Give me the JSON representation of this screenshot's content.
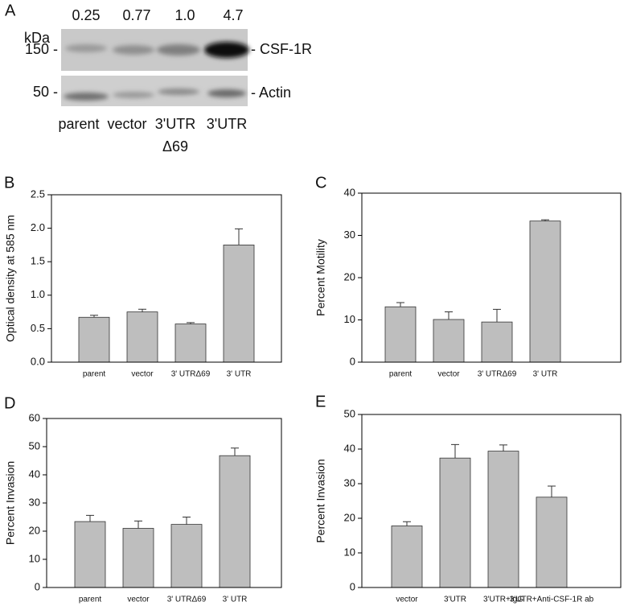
{
  "blot": {
    "panel": "A",
    "unit": "kDa",
    "quantities": [
      "0.25",
      "0.77",
      "1.0",
      "4.7"
    ],
    "markers": [
      "150 -",
      "50 -"
    ],
    "bands": [
      "- CSF-1R",
      "- Actin"
    ],
    "lanes": [
      "parent",
      "vector",
      "3'UTR\nΔ69",
      "3'UTR"
    ]
  },
  "chart_data": [
    {
      "type": "bar",
      "title": "B",
      "y_label": "Optical density at 585 nm",
      "categories": [
        "parent",
        "vector",
        "3' UTRΔ69",
        "3' UTR"
      ],
      "values": [
        0.67,
        0.75,
        0.57,
        1.75
      ],
      "errors": [
        0.03,
        0.04,
        0.02,
        0.24
      ],
      "color": "#bebebe",
      "ylim": [
        0,
        2.5
      ],
      "yticks": [
        {
          "value": 0,
          "label": "0.0"
        },
        0.5,
        {
          "value": 1,
          "label": "1.0"
        },
        1.5,
        {
          "value": 2,
          "label": "2.0"
        },
        2.5
      ]
    },
    {
      "type": "bar",
      "title": "C",
      "y_label": "Percent Motility",
      "categories": [
        "parent",
        "vector",
        "3' UTRΔ69",
        "3' UTR"
      ],
      "values": [
        13.1,
        10.1,
        9.5,
        33.4
      ],
      "errors": [
        1.0,
        1.8,
        3.0,
        0.3
      ],
      "color": "#bebebe",
      "ylim": [
        0,
        40
      ],
      "yticks": [
        0,
        10,
        20,
        30,
        40
      ]
    },
    {
      "type": "bar",
      "title": "D",
      "y_label": "Percent Invasion",
      "categories": [
        "parent",
        "vector",
        "3' UTRΔ69",
        "3' UTR"
      ],
      "values": [
        23.4,
        21.0,
        22.4,
        46.8
      ],
      "errors": [
        2.2,
        2.6,
        2.6,
        2.7
      ],
      "color": "#bebebe",
      "ylim": [
        0,
        60
      ],
      "yticks": [
        0,
        10,
        20,
        30,
        40,
        50,
        60
      ]
    },
    {
      "type": "bar",
      "title": "E",
      "y_label": "Percent Invasion",
      "categories": [
        "vector",
        "3'UTR",
        "3'UTR+IgG",
        "3'UTR+Anti-CSF-1R ab"
      ],
      "values": [
        17.8,
        37.4,
        39.4,
        26.1
      ],
      "errors": [
        1.2,
        3.9,
        1.8,
        3.2
      ],
      "color": "#bebebe",
      "ylim": [
        0,
        50
      ],
      "yticks": [
        0,
        10,
        20,
        30,
        40,
        50
      ]
    }
  ]
}
